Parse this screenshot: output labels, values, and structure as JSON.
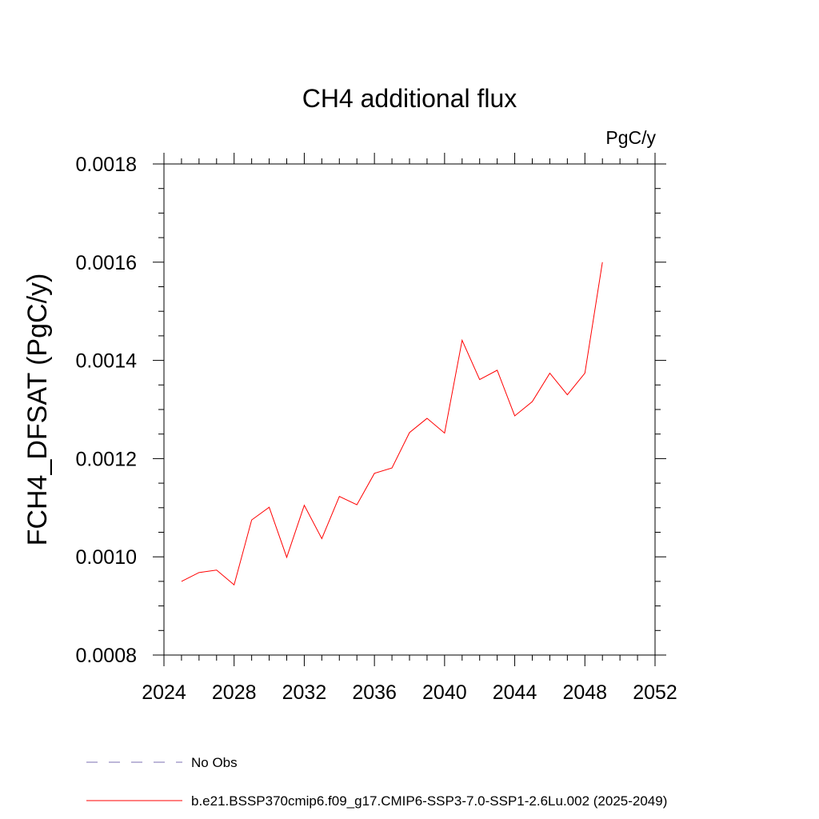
{
  "chart_data": {
    "type": "line",
    "title": "CH4 additional flux",
    "units": "PgC/y",
    "xlabel": "",
    "ylabel": "FCH4_DFSAT  (PgC/y)",
    "xlim": [
      2024,
      2052
    ],
    "ylim": [
      0.0008,
      0.0018
    ],
    "x_ticks": [
      2024,
      2028,
      2032,
      2036,
      2040,
      2044,
      2048,
      2052
    ],
    "y_ticks": [
      "0.0008",
      "0.0010",
      "0.0012",
      "0.0014",
      "0.0016",
      "0.0018"
    ],
    "x_minor_step": 1,
    "y_minor_step": 5e-05,
    "grid": false,
    "legend_position": "bottom",
    "legend": [
      {
        "name": "No Obs",
        "color": "#7b6fb3",
        "dash": "dashed"
      },
      {
        "name": "b.e21.BSSP370cmip6.f09_g17.CMIP6-SSP3-7.0-SSP1-2.6Lu.002 (2025-2049)",
        "color": "#ff0000",
        "dash": "solid"
      }
    ],
    "series": [
      {
        "name": "b.e21.BSSP370cmip6.f09_g17.CMIP6-SSP3-7.0-SSP1-2.6Lu.002 (2025-2049)",
        "color": "#ff0000",
        "x": [
          2025,
          2026,
          2027,
          2028,
          2029,
          2030,
          2031,
          2032,
          2033,
          2034,
          2035,
          2036,
          2037,
          2038,
          2039,
          2040,
          2041,
          2042,
          2043,
          2044,
          2045,
          2046,
          2047,
          2048,
          2049
        ],
        "y": [
          0.00095,
          0.000968,
          0.000973,
          0.000943,
          0.001075,
          0.001101,
          0.000999,
          0.001105,
          0.001037,
          0.001123,
          0.001106,
          0.00117,
          0.001181,
          0.001253,
          0.001282,
          0.001252,
          0.001441,
          0.001361,
          0.00138,
          0.001287,
          0.001316,
          0.001374,
          0.00133,
          0.001374,
          0.0016
        ]
      }
    ]
  }
}
